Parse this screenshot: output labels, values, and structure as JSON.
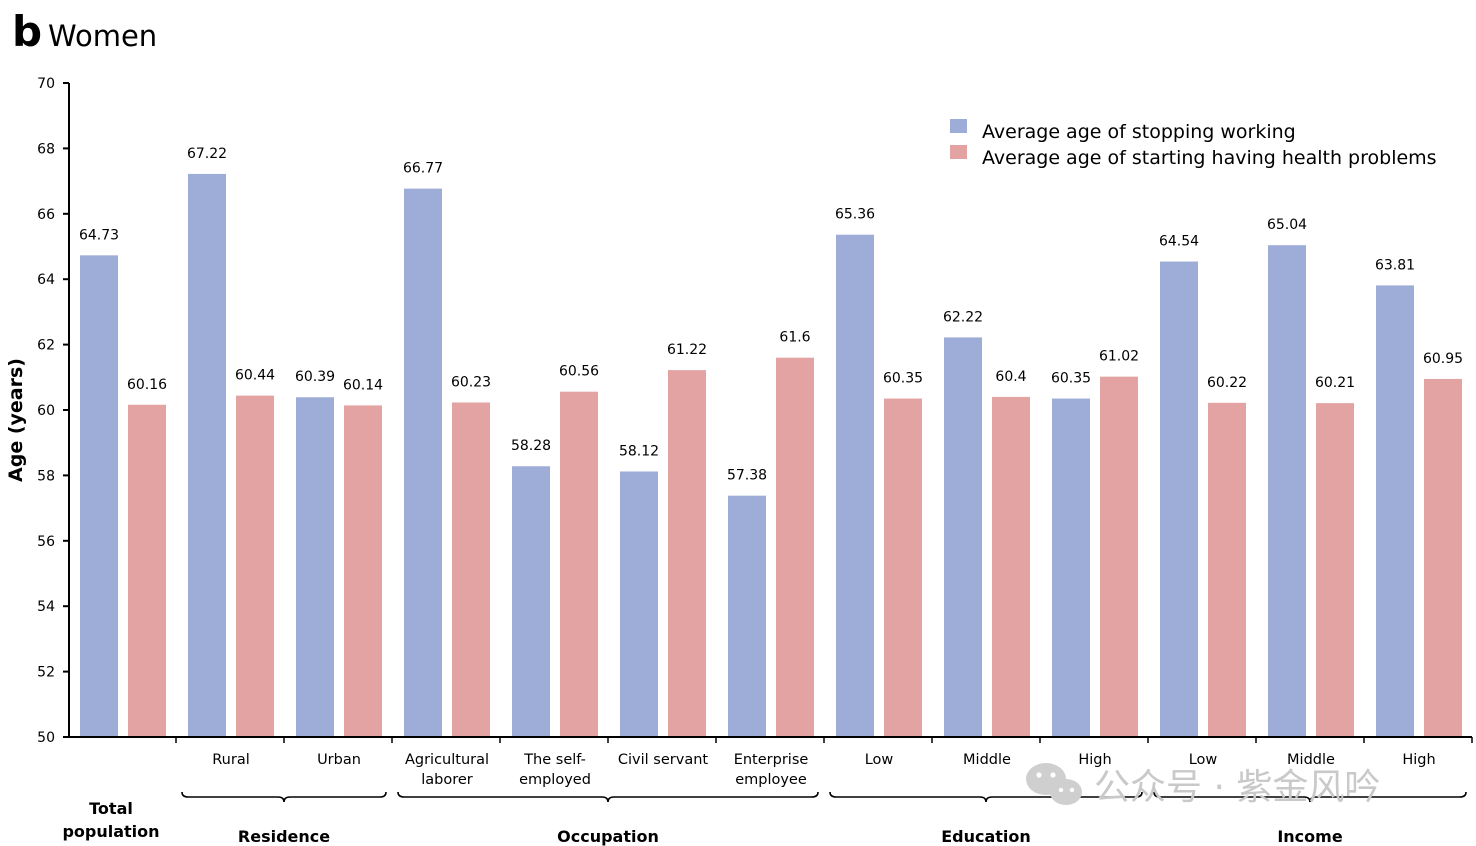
{
  "header": {
    "letter": "b",
    "title": "Women"
  },
  "watermark": {
    "text": "公众号 · 紫金风吟",
    "icon": "wechat-icon"
  },
  "chart_data": {
    "type": "bar",
    "ylabel": "Age (years)",
    "ylim": [
      50,
      70
    ],
    "yticks": [
      50,
      52,
      54,
      56,
      58,
      60,
      62,
      64,
      66,
      68,
      70
    ],
    "legend_position": "top-right",
    "categories": [
      [
        "Total",
        "population"
      ],
      [
        "Rural"
      ],
      [
        "Urban"
      ],
      [
        "Agricultural",
        "laborer"
      ],
      [
        "The self-",
        "employed"
      ],
      [
        "Civil servant"
      ],
      [
        "Enterprise",
        "employee"
      ],
      [
        "Low"
      ],
      [
        "Middle"
      ],
      [
        "High"
      ],
      [
        "Low"
      ],
      [
        "Middle"
      ],
      [
        "High"
      ]
    ],
    "series": [
      {
        "name": "Average age of stopping working",
        "color": "#9eadd7",
        "values": [
          64.73,
          67.22,
          60.39,
          66.77,
          58.28,
          58.12,
          57.38,
          65.36,
          62.22,
          60.35,
          64.54,
          65.04,
          63.81
        ]
      },
      {
        "name": "Average age of starting having health problems",
        "color": "#e3a3a3",
        "values": [
          60.16,
          60.44,
          60.14,
          60.23,
          60.56,
          61.22,
          61.6,
          60.35,
          60.4,
          61.02,
          60.22,
          60.21,
          60.95
        ]
      }
    ],
    "groups": [
      {
        "label": "Residence",
        "from": 1,
        "to": 2
      },
      {
        "label": "Occupation",
        "from": 3,
        "to": 6
      },
      {
        "label": "Education",
        "from": 7,
        "to": 9
      },
      {
        "label": "Income",
        "from": 10,
        "to": 12
      }
    ]
  }
}
